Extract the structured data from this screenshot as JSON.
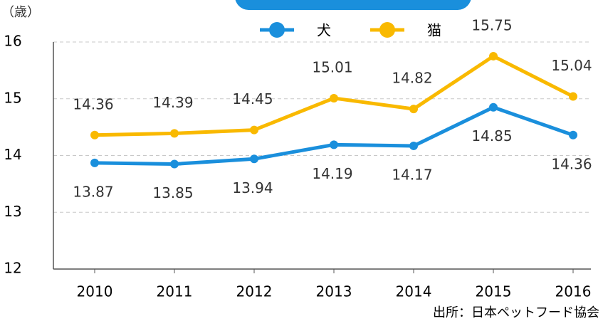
{
  "chart_data": {
    "type": "line",
    "unit_label": "（歳）",
    "source": "出所：日本ペットフード協会",
    "categories": [
      "2010",
      "2011",
      "2012",
      "2013",
      "2014",
      "2015",
      "2016"
    ],
    "series": [
      {
        "name": "犬",
        "color": "#1a8fdc",
        "values": [
          13.87,
          13.85,
          13.94,
          14.19,
          14.17,
          14.85,
          14.36
        ],
        "label_side": "below"
      },
      {
        "name": "猫",
        "color": "#f9b900",
        "values": [
          14.36,
          14.39,
          14.45,
          15.01,
          14.82,
          15.75,
          15.04
        ],
        "label_side": "above"
      }
    ],
    "ylim": [
      12,
      16
    ],
    "yticks": [
      12,
      13,
      14,
      15,
      16
    ],
    "grid": true
  }
}
